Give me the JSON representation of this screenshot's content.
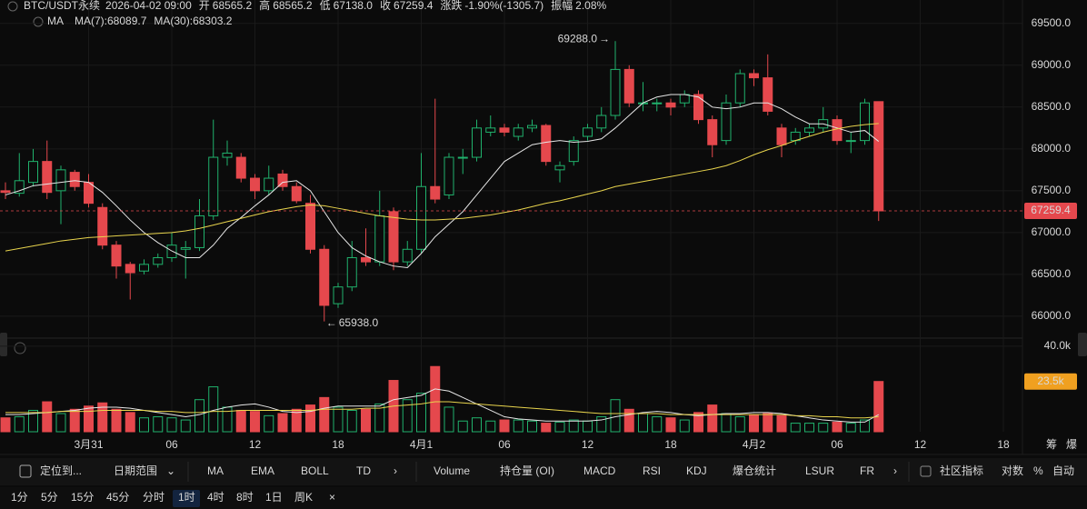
{
  "chart_data": {
    "type": "candlestick",
    "header": {
      "symbol": "BTC/USDT永续",
      "time": "2026-04-02 09:00",
      "fields": [
        {
          "label": "开",
          "value": "68565.2"
        },
        {
          "label": "高",
          "value": "68565.2"
        },
        {
          "label": "低",
          "value": "67138.0"
        },
        {
          "label": "收",
          "value": "67259.4"
        },
        {
          "label": "涨跌",
          "value": "-1.90%(-1305.7)"
        },
        {
          "label": "振幅",
          "value": "2.08%"
        }
      ],
      "ma_label": "MA"
    },
    "categories": [
      null,
      null,
      null,
      null,
      null,
      null,
      "3月31",
      null,
      null,
      null,
      null,
      null,
      "06",
      null,
      null,
      null,
      null,
      null,
      "12",
      null,
      null,
      null,
      null,
      null,
      "18",
      null,
      null,
      null,
      null,
      null,
      "4月1",
      null,
      null,
      null,
      null,
      null,
      "06",
      null,
      null,
      null,
      null,
      null,
      "12",
      null,
      null,
      null,
      null,
      null,
      "18",
      null,
      null,
      null,
      null,
      null,
      "4月2",
      null,
      null,
      null,
      null,
      null,
      "06",
      null,
      null,
      null,
      null,
      null,
      "12",
      null,
      null,
      null,
      null,
      null,
      "18"
    ],
    "open": [
      67500,
      67470,
      67600,
      67850,
      67500,
      67720,
      67600,
      67300,
      66850,
      66620,
      66540,
      66620,
      66700,
      66800,
      66820,
      67200,
      67900,
      67900,
      67650,
      67500,
      67700,
      67550,
      67350,
      66800,
      66150,
      66350,
      66700,
      66650,
      67250,
      66650,
      66800,
      67550,
      67450,
      67900,
      67900,
      68200,
      68250,
      68150,
      68250,
      68280,
      67750,
      67850,
      68150,
      68250,
      68400,
      68950,
      68550,
      68550,
      68550,
      68550,
      68650,
      68350,
      68100,
      68550,
      68900,
      68850,
      68250,
      68100,
      68200,
      68250,
      68350,
      68100,
      68100,
      68565.2,
      null,
      null,
      null,
      null,
      null,
      null,
      null,
      null,
      null
    ],
    "high": [
      67600,
      67950,
      68000,
      68100,
      67800,
      67750,
      67700,
      67350,
      66900,
      66650,
      66680,
      66750,
      67000,
      66900,
      67400,
      68350,
      68100,
      67950,
      67700,
      67800,
      67750,
      67600,
      67450,
      66850,
      66400,
      66900,
      67050,
      67500,
      67300,
      66900,
      67950,
      68600,
      67950,
      68000,
      68350,
      68400,
      68300,
      68300,
      68350,
      68300,
      67850,
      68150,
      68300,
      68500,
      69288,
      69000,
      68800,
      68600,
      68600,
      68700,
      68700,
      68400,
      68650,
      68950,
      68950,
      69130,
      68300,
      68250,
      68300,
      68500,
      68400,
      68200,
      68600,
      68565.2,
      null,
      null,
      null,
      null,
      null,
      null,
      null,
      null,
      null
    ],
    "low": [
      67400,
      67430,
      67550,
      67400,
      67100,
      67500,
      67300,
      66800,
      66450,
      66200,
      66500,
      66580,
      66650,
      66450,
      66780,
      67150,
      67800,
      67600,
      67400,
      67450,
      67500,
      67350,
      66750,
      65938,
      66100,
      66300,
      66600,
      66600,
      66550,
      66600,
      66750,
      67350,
      67400,
      67700,
      67850,
      68150,
      68150,
      68100,
      68200,
      67800,
      67600,
      67800,
      68100,
      68200,
      68350,
      68500,
      68450,
      68450,
      68400,
      68500,
      68300,
      67900,
      68050,
      68500,
      68750,
      68400,
      67900,
      68050,
      68150,
      68200,
      68050,
      67950,
      68050,
      67138,
      null,
      null,
      null,
      null,
      null,
      null,
      null,
      null,
      null
    ],
    "close": [
      67480,
      67620,
      67850,
      67480,
      67750,
      67550,
      67350,
      66850,
      66600,
      66520,
      66620,
      66700,
      66850,
      66820,
      67200,
      67900,
      67950,
      67650,
      67500,
      67650,
      67550,
      67380,
      66800,
      66130,
      66350,
      66700,
      66650,
      67200,
      66650,
      66800,
      67550,
      67400,
      67900,
      67900,
      68250,
      68250,
      68200,
      68250,
      68280,
      67850,
      67800,
      68100,
      68250,
      68400,
      68950,
      68550,
      68550,
      68550,
      68500,
      68650,
      68350,
      68050,
      68550,
      68900,
      68850,
      68450,
      68050,
      68200,
      68250,
      68350,
      68100,
      68100,
      68550,
      67259.4,
      null,
      null,
      null,
      null,
      null,
      null,
      null,
      null,
      null
    ],
    "colors": {
      "up": "#20b26c",
      "down": "#e5484d"
    },
    "ma_lines": [
      {
        "name": "MA(7):68089.7",
        "color": "#e6e6e6",
        "values": [
          67450,
          67500,
          67560,
          67580,
          67600,
          67620,
          67600,
          67480,
          67320,
          67150,
          67000,
          66880,
          66780,
          66700,
          66700,
          66850,
          67050,
          67180,
          67320,
          67450,
          67600,
          67620,
          67500,
          67250,
          67000,
          66820,
          66720,
          66650,
          66600,
          66580,
          66750,
          66950,
          67100,
          67250,
          67450,
          67650,
          67850,
          67950,
          68050,
          68080,
          68100,
          68080,
          68090,
          68120,
          68250,
          68400,
          68550,
          68620,
          68650,
          68650,
          68620,
          68500,
          68480,
          68500,
          68550,
          68550,
          68480,
          68380,
          68300,
          68300,
          68250,
          68200,
          68220,
          68089.7,
          null,
          null,
          null,
          null,
          null,
          null,
          null,
          null,
          null
        ]
      },
      {
        "name": "MA(30):68303.2",
        "color": "#e8d44d",
        "values": [
          66780,
          66810,
          66840,
          66870,
          66900,
          66920,
          66940,
          66950,
          66960,
          66970,
          66980,
          66990,
          67000,
          67020,
          67050,
          67090,
          67130,
          67170,
          67210,
          67250,
          67280,
          67310,
          67330,
          67320,
          67290,
          67260,
          67230,
          67200,
          67180,
          67160,
          67150,
          67150,
          67160,
          67170,
          67190,
          67210,
          67240,
          67270,
          67310,
          67350,
          67380,
          67420,
          67460,
          67500,
          67550,
          67580,
          67610,
          67640,
          67670,
          67700,
          67730,
          67760,
          67800,
          67860,
          67930,
          67990,
          68040,
          68100,
          68150,
          68200,
          68240,
          68270,
          68290,
          68303.2,
          null,
          null,
          null,
          null,
          null,
          null,
          null,
          null,
          null
        ]
      }
    ],
    "ylim": [
      65760,
      69780
    ],
    "yticks": [
      {
        "value": 69500,
        "label": "69500.0"
      },
      {
        "value": 69000,
        "label": "69000.0"
      },
      {
        "value": 68500,
        "label": "68500.0"
      },
      {
        "value": 68000,
        "label": "68000.0"
      },
      {
        "value": 67500,
        "label": "67500.0"
      },
      {
        "value": 67000,
        "label": "67000.0"
      },
      {
        "value": 66500,
        "label": "66500.0"
      },
      {
        "value": 66000,
        "label": "66000.0"
      }
    ],
    "grid": true,
    "last_price": 67259.4,
    "high_mark": {
      "value": 69288,
      "label": "69288.0"
    },
    "low_mark": {
      "value": 65938,
      "label": "65938.0"
    },
    "volume": {
      "values": [
        6.5,
        7,
        10,
        14,
        8.5,
        10.5,
        12,
        13.5,
        10.5,
        9,
        6.5,
        7,
        6.5,
        5.5,
        15,
        21,
        11.5,
        10,
        9.5,
        7.5,
        8.5,
        10.5,
        12.5,
        16,
        11.5,
        10,
        10.5,
        13,
        24,
        15,
        18,
        30.5,
        11.5,
        5,
        6.5,
        5,
        5.5,
        5.5,
        5,
        4,
        4.5,
        5.5,
        5,
        7,
        15,
        10.5,
        8.5,
        7,
        6.5,
        5.5,
        9,
        12.5,
        8.5,
        7,
        8,
        8.5,
        7.5,
        4,
        4,
        4,
        4.5,
        4,
        5.5,
        23.5,
        null,
        null,
        null,
        null,
        null,
        null,
        null,
        null,
        null
      ],
      "ylim": [
        0,
        42.5
      ],
      "yticks": [
        {
          "value": 40,
          "label": "40.0k"
        }
      ],
      "current": {
        "value": 23.5,
        "label": "23.5k",
        "color": "#f0a020"
      },
      "ma_lines": [
        {
          "color": "#e6e6e6",
          "values": [
            8,
            8,
            8.5,
            9,
            9.5,
            10,
            11,
            11.5,
            11.5,
            11,
            10,
            9,
            8,
            7,
            8,
            10,
            11.5,
            12.5,
            13,
            11.5,
            9.5,
            9,
            9.5,
            11,
            12,
            12,
            12,
            12,
            15,
            16,
            17,
            20,
            19,
            16,
            13,
            10,
            7,
            6,
            5.5,
            5,
            5,
            5,
            5,
            5.5,
            7,
            8,
            9,
            9.5,
            9,
            8,
            7.5,
            8,
            8.5,
            8.5,
            9,
            9,
            8.5,
            7.5,
            6.5,
            5.5,
            5,
            4.5,
            4.5,
            8,
            null,
            null,
            null,
            null,
            null,
            null,
            null,
            null,
            null
          ]
        },
        {
          "color": "#e8d44d",
          "values": [
            9,
            9,
            9,
            9,
            9.5,
            9.5,
            9.5,
            10,
            10,
            10,
            10,
            9.5,
            9.5,
            9,
            9,
            9.5,
            9.5,
            10,
            10,
            10,
            10,
            10,
            10,
            10.5,
            10.5,
            10.5,
            11,
            11,
            12,
            12.5,
            13,
            14,
            14,
            13.5,
            13,
            12.5,
            12,
            11.5,
            11,
            10.5,
            10,
            9.5,
            9,
            8.5,
            8.5,
            8.5,
            8.5,
            8.5,
            8,
            8,
            8,
            8,
            8,
            8,
            8,
            8,
            8,
            7.5,
            7.5,
            7,
            7,
            6.5,
            6.5,
            7,
            null,
            null,
            null,
            null,
            null,
            null,
            null,
            null,
            null
          ]
        }
      ]
    },
    "axis_corner": [
      "筹",
      "爆"
    ]
  },
  "ui": {
    "toolbar_left": [
      "定位到...",
      "日期范围"
    ],
    "indicators_main": [
      "MA",
      "EMA",
      "BOLL",
      "TD"
    ],
    "indicators_sub": [
      "Volume",
      "持仓量 (OI)",
      "MACD",
      "RSI",
      "KDJ",
      "爆仓统计",
      "LSUR",
      "FR"
    ],
    "toolbar_right": [
      "社区指标",
      "对数",
      "%",
      "自动"
    ],
    "intervals": [
      "1分",
      "5分",
      "15分",
      "45分",
      "分时",
      "1时",
      "4时",
      "8时",
      "1日",
      "周K"
    ]
  }
}
